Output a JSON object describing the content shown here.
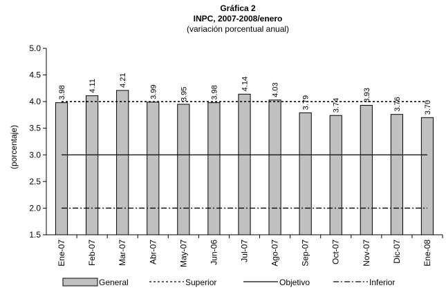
{
  "chart_data": {
    "type": "bar",
    "title": "Gráfica 2",
    "subtitle": "INPC, 2007-2008/enero",
    "subtitle2": "(variación porcentual anual)",
    "ylabel": "(porcentaje)",
    "xlabel": "",
    "ylim": [
      1.5,
      5.0
    ],
    "yticks": [
      "1.5",
      "2.0",
      "2.5",
      "3.0",
      "3.5",
      "4.0",
      "4.5",
      "5.0"
    ],
    "grid": false,
    "legend_position": "bottom",
    "categories": [
      "Ene-07",
      "Feb-07",
      "Mar-07",
      "Abr-07",
      "May-07",
      "Jun-06",
      "Jul-07",
      "Ago-07",
      "Sep-07",
      "Oct-07",
      "Nov-07",
      "Dic-07",
      "Ene-08"
    ],
    "series": [
      {
        "name": "General",
        "kind": "bar",
        "color": "#c0c0c0",
        "values": [
          3.98,
          4.11,
          4.21,
          3.99,
          3.95,
          3.98,
          4.14,
          4.03,
          3.79,
          3.74,
          3.93,
          3.76,
          3.7
        ],
        "labels": [
          "3.98",
          "4.11",
          "4.21",
          "3.99",
          "3.95",
          "3.98",
          "4.14",
          "4.03",
          "3.79",
          "3.74",
          "3.93",
          "3.76",
          "3.70"
        ]
      },
      {
        "name": "Superior",
        "kind": "line",
        "style": "dotted",
        "value": 4.0
      },
      {
        "name": "Objetivo",
        "kind": "line",
        "style": "solid",
        "value": 3.0
      },
      {
        "name": "Inferior",
        "kind": "line",
        "style": "dashdot",
        "value": 2.0
      }
    ]
  }
}
